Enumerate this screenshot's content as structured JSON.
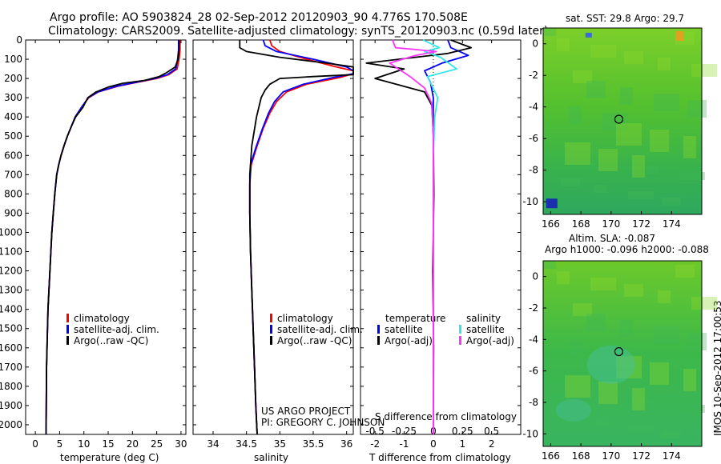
{
  "header": {
    "title_line1": "Argo profile: AO 5903824_28 02-Sep-2012 20120903_90 4.776S 170.508E",
    "title_line2": "Climatology: CARS2009. Satellite-adjusted climatology: synTS_20120903.nc (0.59d later)"
  },
  "side_stamp": "IMOS 10-Sep-2012 17:00:53",
  "credit": {
    "line1": "US ARGO PROJECT",
    "line2": "PI: GREGORY C. JOHNSON"
  },
  "colors": {
    "climatology": "#ff0000",
    "satellite": "#0000ff",
    "argo": "#000000",
    "sat_sal": "#33e6e6",
    "argo_sal": "#ff33ff"
  },
  "chart_data": [
    {
      "type": "line",
      "id": "temperature",
      "xlabel": "temperature (deg C)",
      "ylabel": "",
      "xlim": [
        -2,
        31
      ],
      "ylim": [
        2050,
        0
      ],
      "y_reversed": true,
      "xticks": [
        0,
        5,
        10,
        15,
        20,
        25,
        30
      ],
      "yticks": [
        0,
        100,
        200,
        300,
        400,
        500,
        600,
        700,
        800,
        900,
        1000,
        1100,
        1200,
        1300,
        1400,
        1500,
        1600,
        1700,
        1800,
        1900,
        2000
      ],
      "legend": [
        "climatology",
        "satellite-adj. clim.",
        "Argo(..raw -QC)"
      ],
      "series": [
        {
          "name": "climatology",
          "color": "#ff0000",
          "x": [
            29.8,
            29.8,
            29.6,
            29.2,
            27.5,
            25.0,
            21.0,
            17.0,
            13.0,
            11.0,
            9.5,
            8.2,
            7.4,
            6.6,
            5.9,
            5.3,
            4.8,
            4.4,
            4.0,
            3.7,
            3.4,
            3.2,
            3.0,
            2.8,
            2.6,
            2.5,
            2.4,
            2.3,
            2.2
          ],
          "y": [
            0,
            50,
            100,
            150,
            180,
            200,
            220,
            240,
            270,
            300,
            350,
            400,
            450,
            500,
            550,
            600,
            650,
            700,
            800,
            900,
            1000,
            1100,
            1200,
            1300,
            1400,
            1500,
            1600,
            1700,
            2050
          ]
        },
        {
          "name": "satellite-adj. clim.",
          "color": "#0000ff",
          "x": [
            29.5,
            29.5,
            29.3,
            28.9,
            27.2,
            24.6,
            20.7,
            16.8,
            12.9,
            10.9,
            9.5,
            8.2,
            7.4,
            6.6,
            5.9,
            5.3,
            4.8,
            4.4,
            4.0,
            3.7,
            3.4,
            3.2,
            3.0,
            2.8,
            2.6,
            2.5,
            2.4,
            2.3,
            2.2
          ],
          "y": [
            0,
            50,
            100,
            150,
            180,
            200,
            220,
            240,
            270,
            300,
            350,
            400,
            450,
            500,
            550,
            600,
            650,
            700,
            800,
            900,
            1000,
            1100,
            1200,
            1300,
            1400,
            1500,
            1600,
            1700,
            2050
          ]
        },
        {
          "name": "Argo(..raw -QC)",
          "color": "#000000",
          "x": [
            29.6,
            29.6,
            29.4,
            28.8,
            27.0,
            25.5,
            22.5,
            18.0,
            15.0,
            12.5,
            10.8,
            9.8,
            8.3,
            7.4,
            6.6,
            5.9,
            5.3,
            4.8,
            4.4,
            4.0,
            3.7,
            3.4,
            3.2,
            3.0,
            2.8,
            2.6,
            2.5,
            2.4,
            2.3,
            2.2
          ],
          "y": [
            0,
            50,
            100,
            140,
            170,
            190,
            210,
            225,
            245,
            270,
            300,
            350,
            400,
            450,
            500,
            550,
            600,
            650,
            700,
            800,
            900,
            1000,
            1100,
            1200,
            1300,
            1400,
            1500,
            1600,
            1700,
            2050
          ]
        }
      ]
    },
    {
      "type": "line",
      "id": "salinity",
      "xlabel": "salinity",
      "ylabel": "",
      "xlim": [
        33.7,
        36.1
      ],
      "ylim": [
        2050,
        0
      ],
      "y_reversed": true,
      "xticks": [
        34,
        34.5,
        35,
        35.5,
        36
      ],
      "legend": [
        "climatology",
        "satellite-adj. clim.",
        "Argo(..raw -QC)"
      ],
      "series": [
        {
          "name": "climatology",
          "color": "#ff0000",
          "x": [
            34.85,
            34.88,
            35.0,
            35.4,
            35.85,
            36.1,
            36.1,
            35.9,
            35.4,
            35.1,
            34.95,
            34.85,
            34.75,
            34.65,
            34.57,
            34.55,
            34.55,
            34.56,
            34.58,
            34.6,
            34.62,
            34.64,
            34.66
          ],
          "y": [
            0,
            30,
            60,
            100,
            140,
            160,
            175,
            195,
            230,
            270,
            320,
            380,
            460,
            560,
            650,
            750,
            900,
            1100,
            1300,
            1500,
            1700,
            1900,
            2050
          ]
        },
        {
          "name": "satellite-adj. clim.",
          "color": "#0000ff",
          "x": [
            34.75,
            34.78,
            34.95,
            35.5,
            36.0,
            36.1,
            36.1,
            35.8,
            35.35,
            35.05,
            34.92,
            34.83,
            34.74,
            34.64,
            34.56,
            34.55,
            34.55,
            34.56,
            34.58,
            34.6,
            34.62,
            34.64,
            34.66
          ],
          "y": [
            0,
            30,
            60,
            100,
            140,
            160,
            175,
            195,
            230,
            270,
            320,
            380,
            460,
            560,
            650,
            750,
            900,
            1100,
            1300,
            1500,
            1700,
            1900,
            2050
          ]
        },
        {
          "name": "Argo(..raw -QC)",
          "color": "#000000",
          "x": [
            34.4,
            34.4,
            34.5,
            35.0,
            35.7,
            36.1,
            36.1,
            35.5,
            35.0,
            34.85,
            34.78,
            34.72,
            34.65,
            34.58,
            34.55,
            34.55,
            34.56,
            34.58,
            34.6,
            34.62,
            34.64,
            34.66
          ],
          "y": [
            0,
            40,
            60,
            90,
            120,
            140,
            180,
            190,
            200,
            230,
            260,
            300,
            400,
            550,
            700,
            900,
            1100,
            1300,
            1500,
            1700,
            1900,
            2050
          ]
        }
      ]
    },
    {
      "type": "line",
      "id": "difference",
      "xlabel": "T difference from climatology",
      "x2label": "S difference from climatology",
      "xlim": [
        -2.5,
        3
      ],
      "ylim": [
        2050,
        0
      ],
      "y_reversed": true,
      "xticks": [
        -2,
        -1,
        0,
        1,
        2
      ],
      "x2ticks": [
        "-0.5",
        "-0.25",
        "0",
        "0.25",
        "0.5"
      ],
      "legend_temperature": {
        "title": "temperature",
        "items": [
          "satellite",
          "Argo(-adj)"
        ]
      },
      "legend_salinity": {
        "title": "salinity",
        "items": [
          "satellite",
          "Argo(-adj)"
        ]
      },
      "series": [
        {
          "name": "temperature satellite",
          "color": "#0000ff",
          "x": [
            0.5,
            0.6,
            1.2,
            0.3,
            -0.3,
            -0.1,
            0,
            0,
            0,
            0
          ],
          "y": [
            0,
            40,
            80,
            120,
            160,
            220,
            300,
            500,
            1000,
            2050
          ]
        },
        {
          "name": "temperature Argo(-adj)",
          "color": "#000000",
          "x": [
            0.6,
            1.3,
            0.5,
            -2.3,
            -1.0,
            -2.0,
            -0.3,
            -0.05,
            0,
            0.02,
            -0.02,
            0.01,
            0
          ],
          "y": [
            0,
            40,
            70,
            120,
            150,
            200,
            270,
            340,
            500,
            800,
            1200,
            1600,
            2050
          ]
        },
        {
          "name": "salinity satellite",
          "color": "#33e6e6",
          "x": [
            -0.35,
            0.2,
            -0.3,
            0.25,
            0.8,
            -0.2,
            0.15,
            0.05,
            0,
            0,
            0
          ],
          "y": [
            0,
            40,
            60,
            90,
            150,
            190,
            300,
            400,
            600,
            1000,
            2050
          ]
        },
        {
          "name": "salinity Argo(-adj)",
          "color": "#ff33ff",
          "x": [
            -1.4,
            -1.3,
            0.1,
            -0.6,
            -1.5,
            -1.2,
            -0.8,
            -0.3,
            -0.05,
            0,
            0
          ],
          "y": [
            0,
            40,
            60,
            80,
            120,
            150,
            190,
            250,
            330,
            500,
            2050
          ]
        }
      ]
    },
    {
      "type": "heatmap",
      "id": "sst-map",
      "title": "sat. SST: 29.8 Argo: 29.7",
      "xlim": [
        165.5,
        176
      ],
      "ylim": [
        -10.8,
        1
      ],
      "xticks": [
        166,
        168,
        170,
        172,
        174
      ],
      "yticks": [
        0,
        -2,
        -4,
        -6,
        -8,
        -10
      ],
      "marker": {
        "lon": 170.508,
        "lat": -4.776
      }
    },
    {
      "type": "heatmap",
      "id": "sla-map",
      "title_line1": "Altim. SLA: -0.087",
      "title_line2": "Argo h1000: -0.096 h2000: -0.088",
      "xlim": [
        165.5,
        176
      ],
      "ylim": [
        -10.8,
        1
      ],
      "xticks": [
        166,
        168,
        170,
        172,
        174
      ],
      "yticks": [
        0,
        -2,
        -4,
        -6,
        -8,
        -10
      ],
      "marker": {
        "lon": 170.508,
        "lat": -4.776
      }
    }
  ]
}
